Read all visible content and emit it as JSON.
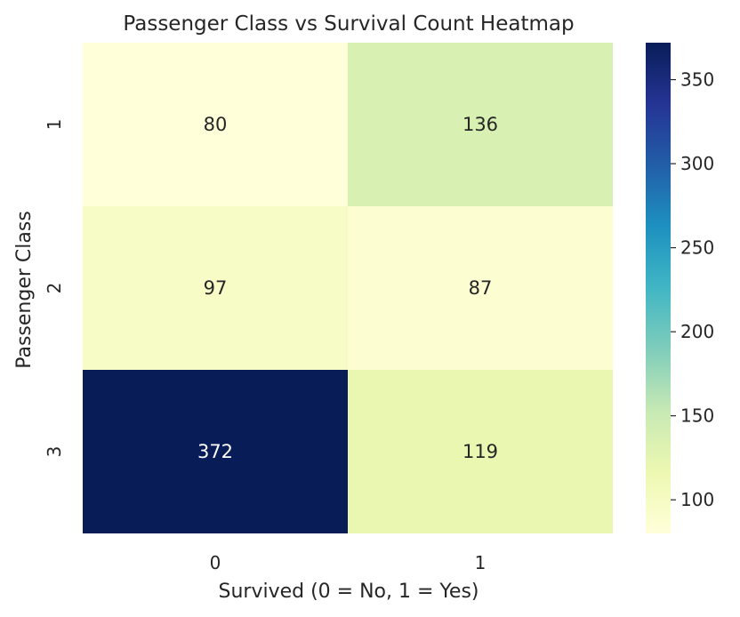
{
  "chart_data": {
    "type": "heatmap",
    "title": "Passenger Class vs Survival Count Heatmap",
    "xlabel": "Survived (0 = No, 1 = Yes)",
    "ylabel": "Passenger Class",
    "x_categories": [
      "0",
      "1"
    ],
    "y_categories": [
      "1",
      "2",
      "3"
    ],
    "values": [
      [
        80,
        136
      ],
      [
        97,
        87
      ],
      [
        372,
        119
      ]
    ],
    "colorbar": {
      "min": 80,
      "max": 372,
      "ticks": [
        100,
        150,
        200,
        250,
        300,
        350
      ],
      "colormap": "YlGnBu"
    },
    "grid": false,
    "legend": "colorbar-right"
  }
}
